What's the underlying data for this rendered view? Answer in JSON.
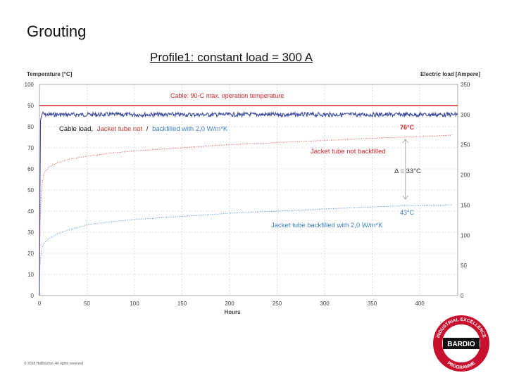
{
  "slide": {
    "title": "Grouting",
    "footer": "© 2018 Halliburton. All rights reserved",
    "logo": {
      "name": "BARDIO",
      "ring_top": "INDUSTRIAL EXCELLENCE",
      "ring_bottom": "PROGRAMME"
    }
  },
  "colors": {
    "cable_limit": "#d8262b",
    "cable_load": "#3b4a9e",
    "not_backfilled": "#e03a3a",
    "backfilled": "#3d7fc4",
    "grid": "#c8c8c8",
    "axis_text": "#444444"
  },
  "chart_data": {
    "type": "line",
    "title": "Profile1: constant load = 300 A",
    "xlabel": "Hours",
    "ylabel": "Temperature [°C]",
    "y2label": "Electric load [Ampere]",
    "xlim": [
      0,
      440
    ],
    "ylim": [
      0,
      100
    ],
    "y2lim": [
      0,
      350
    ],
    "xticks": [
      0,
      50,
      100,
      150,
      200,
      250,
      300,
      350,
      400
    ],
    "yticks": [
      0,
      10,
      20,
      30,
      40,
      50,
      60,
      70,
      80,
      90,
      100
    ],
    "y2ticks": [
      0,
      50,
      100,
      150,
      200,
      250,
      300,
      350
    ],
    "grid": true,
    "series": [
      {
        "name": "Cable max. operation temperature",
        "axis": "left",
        "style": "solid",
        "x": [
          0,
          440
        ],
        "y": [
          90,
          90
        ]
      },
      {
        "name": "Cable load",
        "axis": "right",
        "style": "noisy",
        "x": [
          0,
          1,
          3,
          5,
          50,
          100,
          200,
          300,
          400,
          440
        ],
        "y": [
          0,
          290,
          302,
          300,
          300,
          300,
          300,
          300,
          300,
          300
        ]
      },
      {
        "name": "Jacket tube not backfilled",
        "axis": "left",
        "style": "dotted",
        "x": [
          0,
          1,
          3,
          5,
          10,
          20,
          30,
          50,
          75,
          100,
          150,
          200,
          250,
          300,
          350,
          400,
          435
        ],
        "y": [
          10,
          40,
          54,
          58,
          61,
          63,
          64.5,
          66,
          67.5,
          68.5,
          70,
          71.5,
          72.5,
          73.5,
          74.5,
          75.3,
          76
        ]
      },
      {
        "name": "Jacket tube backfilled with 2,0 W/m*K",
        "axis": "left",
        "style": "dotted",
        "x": [
          0,
          1,
          3,
          5,
          10,
          20,
          30,
          50,
          75,
          100,
          150,
          200,
          250,
          300,
          350,
          400,
          435
        ],
        "y": [
          5,
          18,
          23,
          25,
          27,
          29.5,
          31,
          33.5,
          35,
          36,
          37.5,
          39,
          40,
          41,
          42,
          42.7,
          43
        ]
      }
    ],
    "annotations": {
      "limit_label": "Cable: 90◦C max. operation temperature",
      "legend_prefix": "Cable load,",
      "legend_red": "Jacket tube not",
      "legend_sep": "/",
      "legend_blue": "backfilled with 2,0 W/m*K",
      "top_value": "76°C",
      "top_label": "Jacket tube not backfilled",
      "delta": "Δ = 33°C",
      "bottom_value": "43°C",
      "bottom_label": "Jacket tube backfilled with 2,0 W/m*K",
      "delta_hours": 385
    }
  }
}
